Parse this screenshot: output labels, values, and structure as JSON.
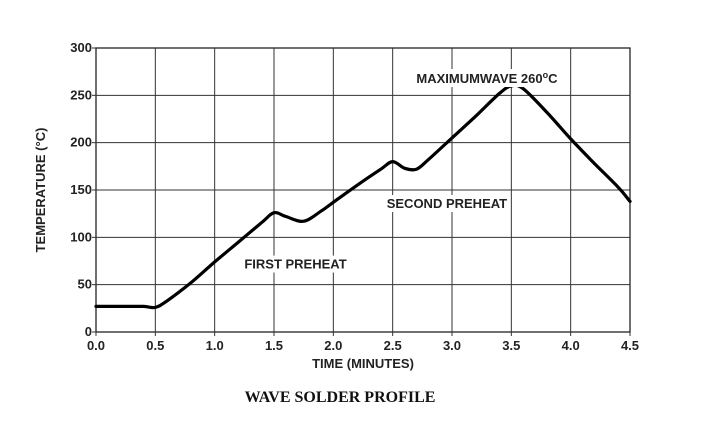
{
  "chart_data": {
    "type": "line",
    "title": "",
    "caption": "WAVE SOLDER PROFILE",
    "xlabel": "TIME (MINUTES)",
    "ylabel": "TEMPERATURE (°C)",
    "xlim": [
      0,
      4.5
    ],
    "ylim": [
      0,
      300
    ],
    "x_ticks": [
      0.0,
      0.5,
      1.0,
      1.5,
      2.0,
      2.5,
      3.0,
      3.5,
      4.0,
      4.5
    ],
    "x_tick_labels": [
      "0.0",
      "0.5",
      "1.0",
      "1.5",
      "2.0",
      "2.5",
      "3.0",
      "3.5",
      "4.0",
      "4.5"
    ],
    "y_ticks": [
      0,
      50,
      100,
      150,
      200,
      250,
      300
    ],
    "y_tick_labels": [
      "0",
      "50",
      "100",
      "150",
      "200",
      "250",
      "300"
    ],
    "grid": true,
    "line_color": "#000000",
    "series": [
      {
        "x": [
          0.0,
          0.2,
          0.4,
          0.5,
          0.6,
          0.8,
          1.0,
          1.2,
          1.4,
          1.5,
          1.6,
          1.75,
          1.9,
          2.0,
          2.2,
          2.4,
          2.5,
          2.6,
          2.7,
          2.8,
          3.0,
          3.2,
          3.4,
          3.5,
          3.6,
          3.8,
          4.0,
          4.2,
          4.4,
          4.5
        ],
        "y": [
          27,
          27,
          27,
          26,
          33,
          52,
          74,
          95,
          116,
          126,
          122,
          117,
          128,
          137,
          155,
          172,
          180,
          173,
          172,
          182,
          205,
          228,
          252,
          260,
          257,
          232,
          204,
          178,
          153,
          138
        ]
      }
    ],
    "annotations": [
      {
        "text": "MAXIMUMWAVE 260",
        "superscript": "o",
        "suffix": "C",
        "x": 2.7,
        "y": 263
      },
      {
        "text": "SECOND PREHEAT",
        "x": 2.45,
        "y": 131
      },
      {
        "text": "FIRST PREHEAT",
        "x": 1.25,
        "y": 67
      }
    ]
  }
}
